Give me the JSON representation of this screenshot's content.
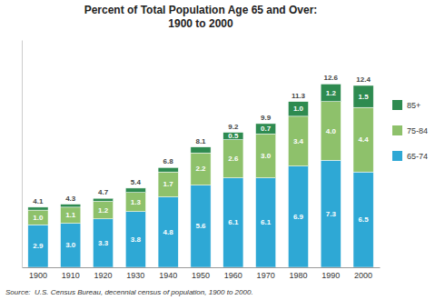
{
  "chart_data": {
    "type": "bar",
    "stacked": true,
    "title": "Percent of Total Population Age 65 and Over:\n1900 to 2000",
    "source": "Source:  U.S. Census Bureau, decennial census of population, 1900 to 2000.",
    "categories": [
      "1900",
      "1910",
      "1920",
      "1930",
      "1940",
      "1950",
      "1960",
      "1970",
      "1980",
      "1990",
      "2000"
    ],
    "series": [
      {
        "name": "65-74",
        "color": "#2ea8d5",
        "values": [
          2.9,
          3.0,
          3.3,
          3.8,
          4.8,
          5.6,
          6.1,
          6.1,
          6.9,
          7.3,
          6.5
        ],
        "value_labels": [
          "2.9",
          "3.0",
          "3.3",
          "3.8",
          "4.8",
          "5.6",
          "6.1",
          "6.1",
          "6.9",
          "7.3",
          "6.5"
        ]
      },
      {
        "name": "75-84",
        "color": "#8ec16b",
        "values": [
          1.0,
          1.1,
          1.2,
          1.3,
          1.7,
          2.2,
          2.6,
          3.0,
          3.4,
          4.0,
          4.4
        ],
        "value_labels": [
          "1.0",
          "1.1",
          "1.2",
          "1.3",
          "1.7",
          "2.2",
          "2.6",
          "3.0",
          "3.4",
          "4.0",
          "4.4"
        ]
      },
      {
        "name": "85+",
        "color": "#2e8b50",
        "values": [
          0.2,
          0.2,
          0.2,
          0.3,
          0.3,
          0.4,
          0.5,
          0.7,
          1.0,
          1.2,
          1.5
        ],
        "value_labels": [
          null,
          null,
          null,
          null,
          null,
          null,
          "0.5",
          "0.7",
          "1.0",
          "1.2",
          "1.5"
        ]
      }
    ],
    "totals": [
      4.1,
      4.3,
      4.7,
      5.4,
      6.8,
      8.1,
      9.2,
      9.9,
      11.3,
      12.6,
      12.4
    ],
    "ylim": [
      0,
      15.5
    ],
    "data_labels": true,
    "tick_labels": "x",
    "grid": false,
    "legend": "right"
  }
}
